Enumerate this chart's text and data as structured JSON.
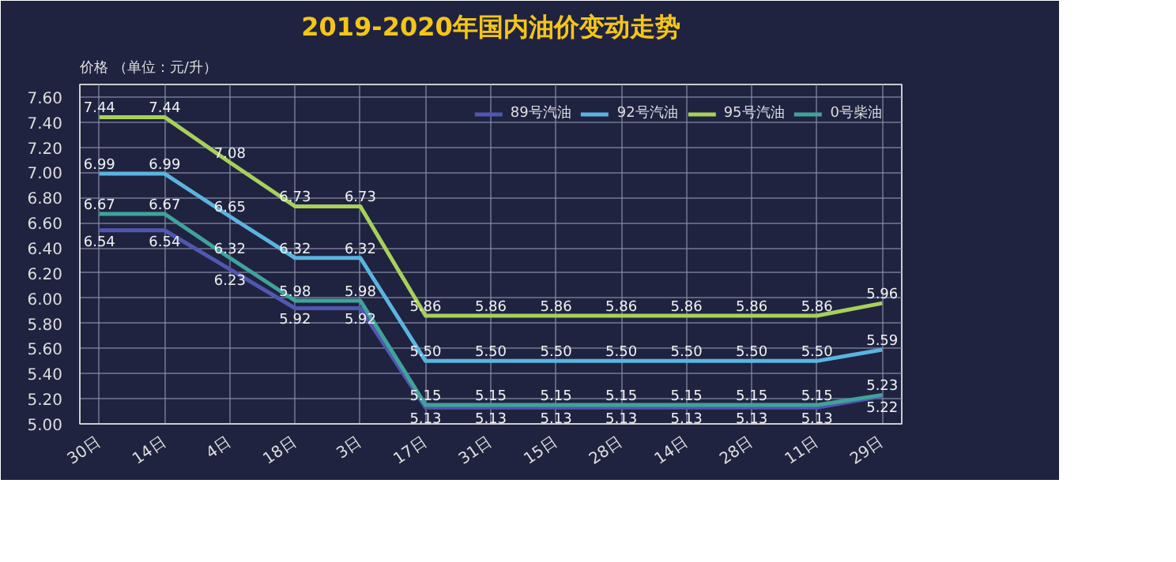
{
  "chart_data": {
    "type": "line",
    "title": "2019-2020年国内油价变动走势",
    "ylabel": "价格 （单位：元/升）",
    "categories": [
      "30日",
      "14日",
      "4日",
      "18日",
      "3日",
      "17日",
      "31日",
      "15日",
      "28日",
      "14日",
      "28日",
      "11日",
      "29日"
    ],
    "series": [
      {
        "name": "89号汽油",
        "color": "#5156b0",
        "values": [
          6.54,
          6.54,
          6.23,
          5.92,
          5.92,
          5.13,
          5.13,
          5.13,
          5.13,
          5.13,
          5.13,
          5.13,
          5.22
        ],
        "value_labels": [
          "6.54",
          "6.54",
          "6.23",
          "5.92",
          "5.92",
          "5.13",
          "5.13",
          "5.13",
          "5.13",
          "5.13",
          "5.13",
          "5.13",
          "5.22"
        ]
      },
      {
        "name": "92号汽油",
        "color": "#5ab4e0",
        "values": [
          6.99,
          6.99,
          6.65,
          6.32,
          6.32,
          5.5,
          5.5,
          5.5,
          5.5,
          5.5,
          5.5,
          5.5,
          5.59
        ],
        "value_labels": [
          "6.99",
          "6.99",
          "6.65",
          "6.32",
          "6.32",
          "5.50",
          "5.50",
          "5.50",
          "5.50",
          "5.50",
          "5.50",
          "5.50",
          "5.59"
        ]
      },
      {
        "name": "95号汽油",
        "color": "#a8d05a",
        "values": [
          7.44,
          7.44,
          7.08,
          6.73,
          6.73,
          5.86,
          5.86,
          5.86,
          5.86,
          5.86,
          5.86,
          5.86,
          5.96
        ],
        "value_labels": [
          "7.44",
          "7.44",
          "7.08",
          "6.73",
          "6.73",
          "5.86",
          "5.86",
          "5.86",
          "5.86",
          "5.86",
          "5.86",
          "5.86",
          "5.96"
        ]
      },
      {
        "name": "0号柴油",
        "color": "#3fa39a",
        "values": [
          6.67,
          6.67,
          6.32,
          5.98,
          5.98,
          5.15,
          5.15,
          5.15,
          5.15,
          5.15,
          5.15,
          5.15,
          5.23
        ],
        "value_labels": [
          "6.67",
          "6.67",
          "6.32",
          "5.98",
          "5.98",
          "5.15",
          "5.15",
          "5.15",
          "5.15",
          "5.15",
          "5.15",
          "5.15",
          "5.23"
        ]
      }
    ],
    "ylim": [
      5.0,
      7.7
    ],
    "yticks": [
      "5.00",
      "5.20",
      "5.40",
      "5.60",
      "5.80",
      "6.00",
      "6.20",
      "6.40",
      "6.60",
      "6.80",
      "7.00",
      "7.20",
      "7.40",
      "7.60"
    ],
    "grid": true,
    "legend": "top",
    "marker": "none",
    "line_style": "solid"
  }
}
